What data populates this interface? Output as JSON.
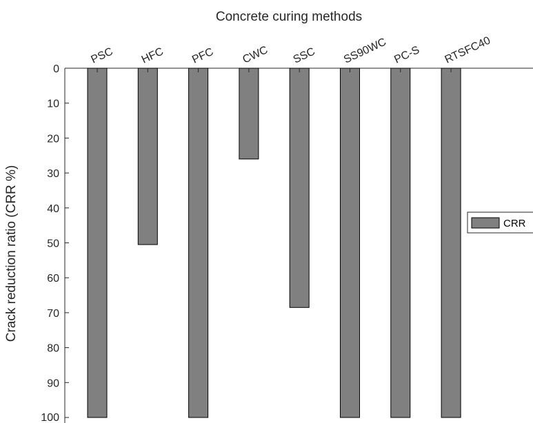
{
  "chart_data": {
    "type": "bar",
    "orientation": "downward",
    "title": "",
    "xlabel": "Concrete curing methods",
    "ylabel": "Crack reduction ratio (CRR %)",
    "x_axis_position": "top",
    "y_axis_reversed": true,
    "categories": [
      "PSC",
      "HFC",
      "PFC",
      "CWC",
      "SSC",
      "SS90WC",
      "PC-S",
      "RTSFC40"
    ],
    "series": [
      {
        "name": "CRR",
        "values": [
          100,
          50.5,
          100,
          26,
          68.5,
          100,
          100,
          100
        ],
        "color": "#808080"
      }
    ],
    "ylim": [
      0,
      100
    ],
    "yticks": [
      "0",
      "10",
      "20",
      "30",
      "40",
      "50",
      "60",
      "70",
      "80",
      "90",
      "100"
    ],
    "grid": false,
    "legend": {
      "position": "right-middle",
      "entries": [
        "CRR"
      ]
    }
  }
}
